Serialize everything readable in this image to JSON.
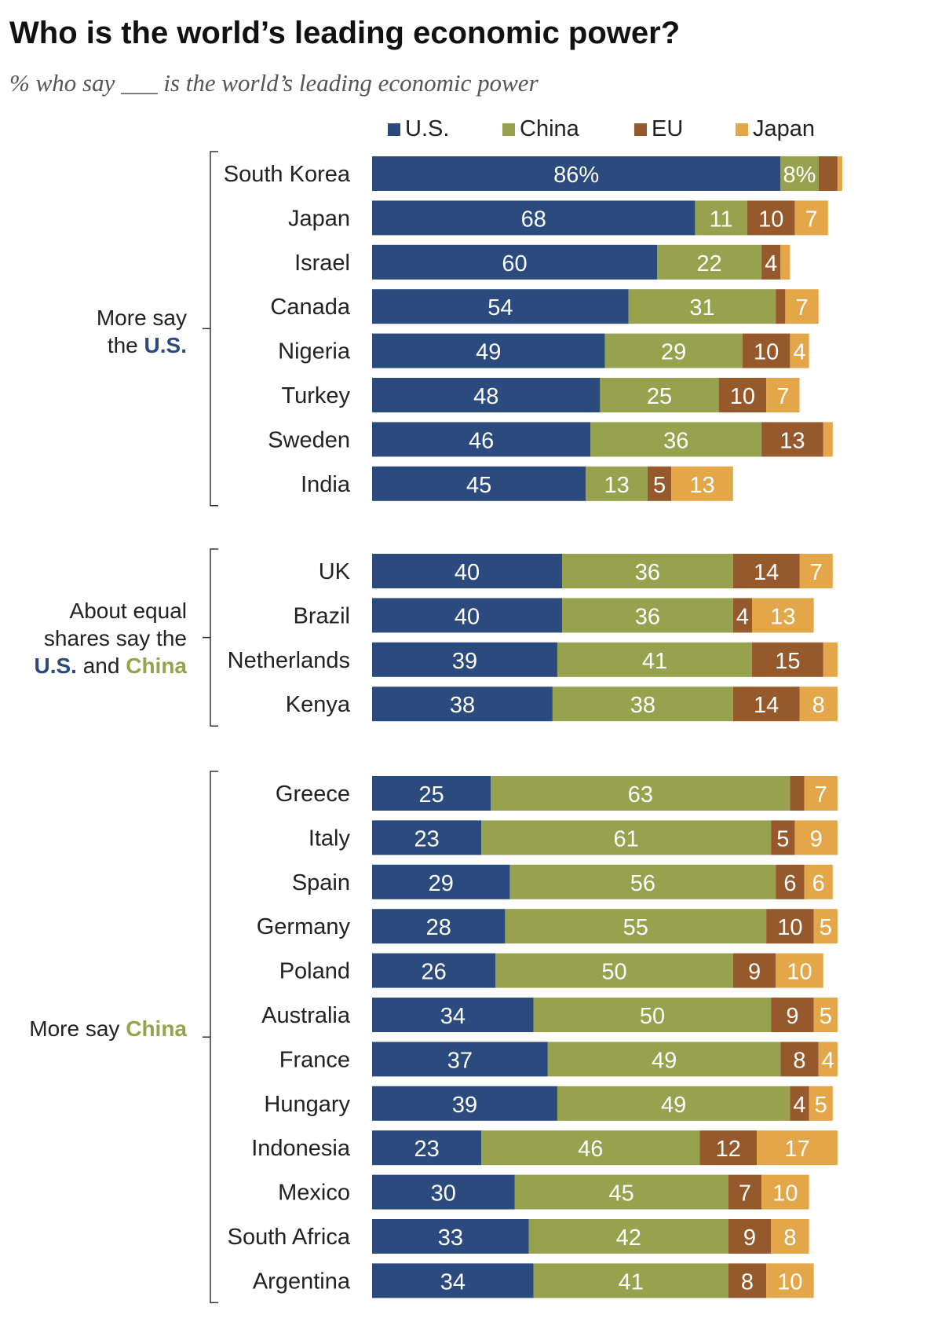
{
  "title": "Who is the world’s leading economic power?",
  "subtitle": "% who say ___ is the world’s leading economic power",
  "colors": {
    "us": "#2b4a7e",
    "china": "#96a24d",
    "eu": "#96592c",
    "japan": "#e3a649"
  },
  "groups": [
    {
      "line1": "More say",
      "line2_pre": "the ",
      "line2_us": "U.S.",
      "line2_mid": "",
      "line2_china": "",
      "line0": ""
    },
    {
      "line0": "About equal",
      "line1": "shares say the",
      "line2_pre": "",
      "line2_us": "U.S.",
      "line2_mid": " and ",
      "line2_china": "China"
    },
    {
      "line0": "",
      "line1": "",
      "line2_pre": "More say ",
      "line2_us": "",
      "line2_mid": "",
      "line2_china": "China"
    }
  ],
  "chart_data": {
    "type": "bar",
    "orientation": "horizontal",
    "stacked": true,
    "title": "Who is the world’s leading economic power?",
    "subtitle": "% who say ___ is the world’s leading economic power",
    "legend_position": "top",
    "grid": false,
    "series": [
      {
        "name": "U.S.",
        "color": "#2b4a7e"
      },
      {
        "name": "China",
        "color": "#96a24d"
      },
      {
        "name": "EU",
        "color": "#96592c"
      },
      {
        "name": "Japan",
        "color": "#e3a649"
      }
    ],
    "rows": [
      {
        "country": "South Korea",
        "group": 0,
        "values": [
          86,
          8,
          4,
          1
        ],
        "labels": [
          "86%",
          "8%",
          "",
          ""
        ]
      },
      {
        "country": "Japan",
        "group": 0,
        "values": [
          68,
          11,
          10,
          7
        ],
        "labels": [
          "68",
          "11",
          "10",
          "7"
        ]
      },
      {
        "country": "Israel",
        "group": 0,
        "values": [
          60,
          22,
          4,
          2
        ],
        "labels": [
          "60",
          "22",
          "4",
          ""
        ]
      },
      {
        "country": "Canada",
        "group": 0,
        "values": [
          54,
          31,
          2,
          7
        ],
        "labels": [
          "54",
          "31",
          "",
          "7"
        ]
      },
      {
        "country": "Nigeria",
        "group": 0,
        "values": [
          49,
          29,
          10,
          4
        ],
        "labels": [
          "49",
          "29",
          "10",
          "4"
        ]
      },
      {
        "country": "Turkey",
        "group": 0,
        "values": [
          48,
          25,
          10,
          7
        ],
        "labels": [
          "48",
          "25",
          "10",
          "7"
        ]
      },
      {
        "country": "Sweden",
        "group": 0,
        "values": [
          46,
          36,
          13,
          2
        ],
        "labels": [
          "46",
          "36",
          "13",
          ""
        ]
      },
      {
        "country": "India",
        "group": 0,
        "values": [
          45,
          13,
          5,
          13
        ],
        "labels": [
          "45",
          "13",
          "5",
          "13"
        ]
      },
      {
        "country": "UK",
        "group": 1,
        "values": [
          40,
          36,
          14,
          7
        ],
        "labels": [
          "40",
          "36",
          "14",
          "7"
        ]
      },
      {
        "country": "Brazil",
        "group": 1,
        "values": [
          40,
          36,
          4,
          13
        ],
        "labels": [
          "40",
          "36",
          "4",
          "13"
        ]
      },
      {
        "country": "Netherlands",
        "group": 1,
        "values": [
          39,
          41,
          15,
          3
        ],
        "labels": [
          "39",
          "41",
          "15",
          ""
        ]
      },
      {
        "country": "Kenya",
        "group": 1,
        "values": [
          38,
          38,
          14,
          8
        ],
        "labels": [
          "38",
          "38",
          "14",
          "8"
        ]
      },
      {
        "country": "Greece",
        "group": 2,
        "values": [
          25,
          63,
          3,
          7
        ],
        "labels": [
          "25",
          "63",
          "",
          "7"
        ]
      },
      {
        "country": "Italy",
        "group": 2,
        "values": [
          23,
          61,
          5,
          9
        ],
        "labels": [
          "23",
          "61",
          "5",
          "9"
        ]
      },
      {
        "country": "Spain",
        "group": 2,
        "values": [
          29,
          56,
          6,
          6
        ],
        "labels": [
          "29",
          "56",
          "6",
          "6"
        ]
      },
      {
        "country": "Germany",
        "group": 2,
        "values": [
          28,
          55,
          10,
          5
        ],
        "labels": [
          "28",
          "55",
          "10",
          "5"
        ]
      },
      {
        "country": "Poland",
        "group": 2,
        "values": [
          26,
          50,
          9,
          10
        ],
        "labels": [
          "26",
          "50",
          "9",
          "10"
        ]
      },
      {
        "country": "Australia",
        "group": 2,
        "values": [
          34,
          50,
          9,
          5
        ],
        "labels": [
          "34",
          "50",
          "9",
          "5"
        ]
      },
      {
        "country": "France",
        "group": 2,
        "values": [
          37,
          49,
          8,
          4
        ],
        "labels": [
          "37",
          "49",
          "8",
          "4"
        ]
      },
      {
        "country": "Hungary",
        "group": 2,
        "values": [
          39,
          49,
          4,
          5
        ],
        "labels": [
          "39",
          "49",
          "4",
          "5"
        ]
      },
      {
        "country": "Indonesia",
        "group": 2,
        "values": [
          23,
          46,
          12,
          17
        ],
        "labels": [
          "23",
          "46",
          "12",
          "17"
        ]
      },
      {
        "country": "Mexico",
        "group": 2,
        "values": [
          30,
          45,
          7,
          10
        ],
        "labels": [
          "30",
          "45",
          "7",
          "10"
        ]
      },
      {
        "country": "South Africa",
        "group": 2,
        "values": [
          33,
          42,
          9,
          8
        ],
        "labels": [
          "33",
          "42",
          "9",
          "8"
        ]
      },
      {
        "country": "Argentina",
        "group": 2,
        "values": [
          34,
          41,
          8,
          10
        ],
        "labels": [
          "34",
          "41",
          "8",
          "10"
        ]
      }
    ]
  }
}
